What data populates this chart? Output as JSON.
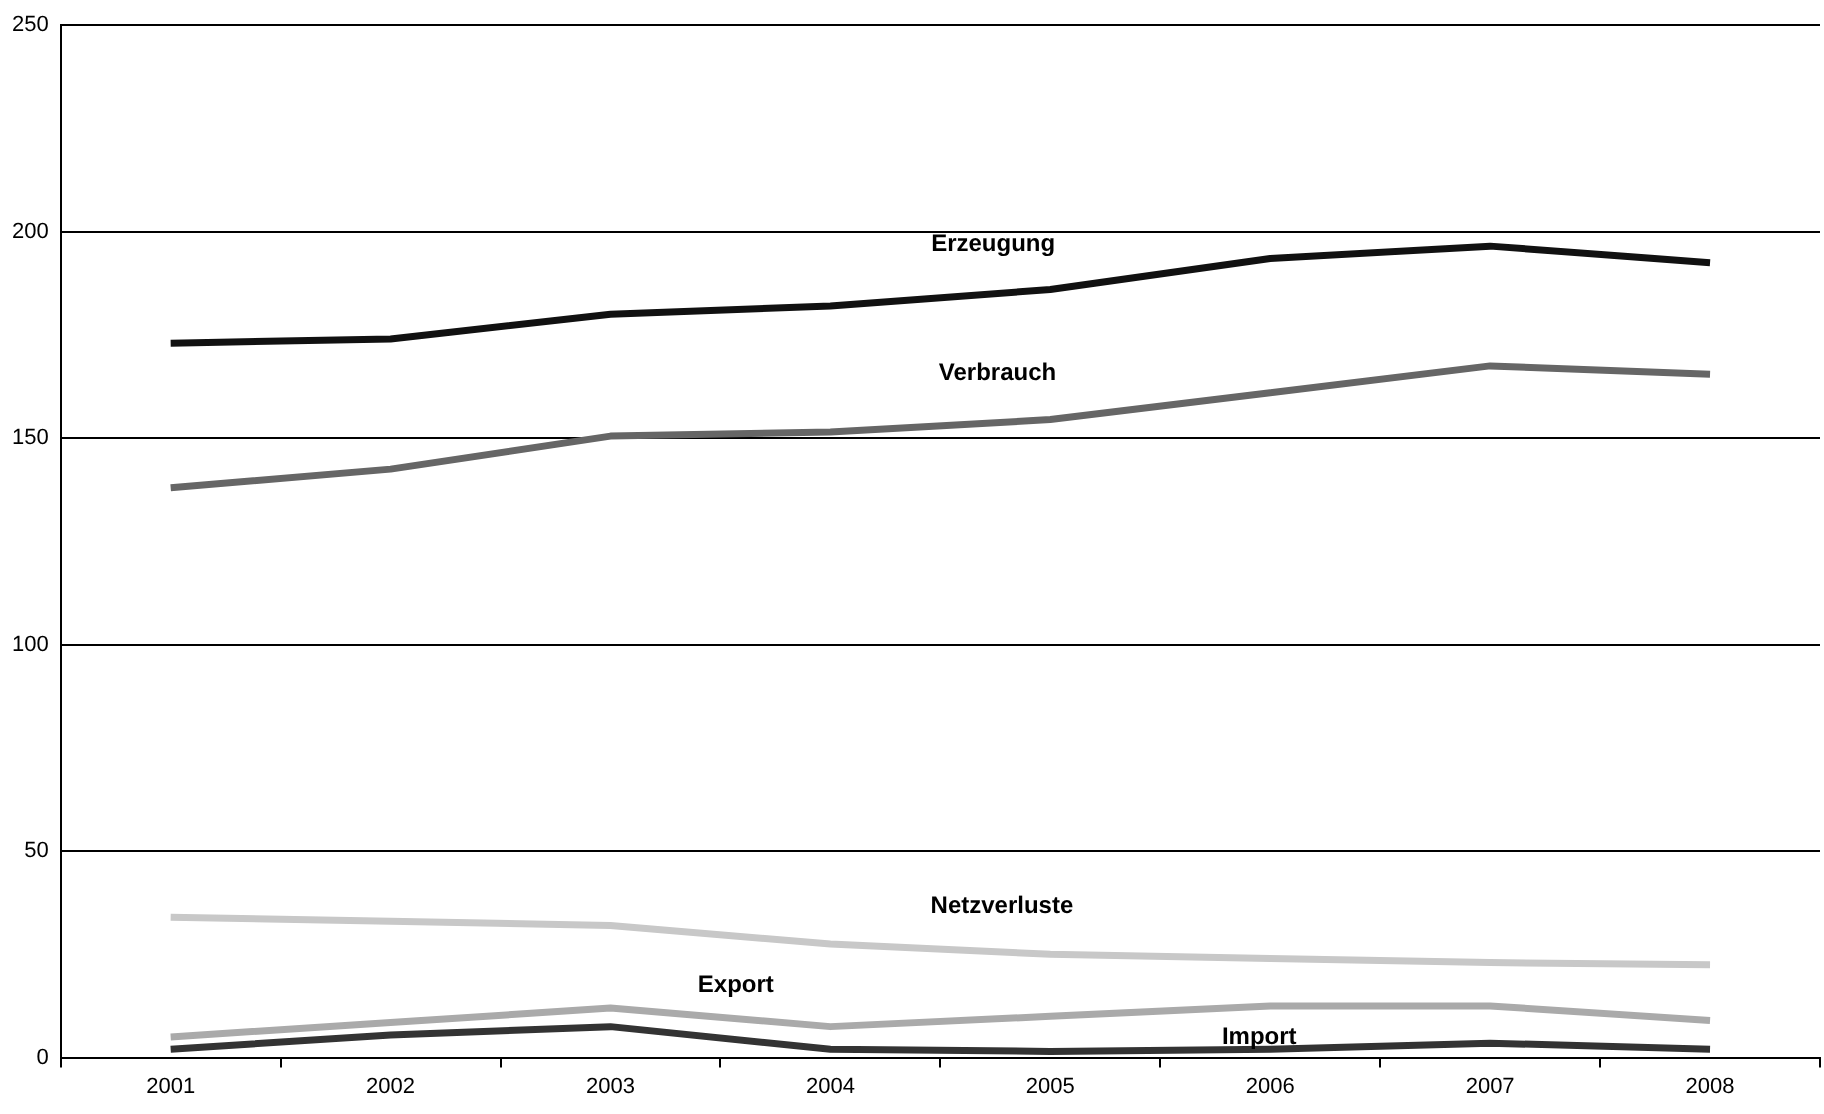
{
  "chart_data": {
    "type": "line",
    "categories": [
      "2001",
      "2002",
      "2003",
      "2004",
      "2005",
      "2006",
      "2007",
      "2008"
    ],
    "series": [
      {
        "name": "Erzeugung",
        "color": "#111111",
        "values": [
          173,
          174,
          180,
          182,
          186,
          193.5,
          196.5,
          192.5
        ]
      },
      {
        "name": "Verbrauch",
        "color": "#666666",
        "values": [
          138,
          142.5,
          150.5,
          151.5,
          154.5,
          161,
          167.5,
          165.5
        ]
      },
      {
        "name": "Netzverluste",
        "color": "#c8c8c8",
        "values": [
          34,
          33,
          32,
          27.5,
          25,
          24,
          23,
          22.5
        ]
      },
      {
        "name": "Export",
        "color": "#aaaaaa",
        "values": [
          5,
          8.5,
          12,
          7.5,
          10,
          12.5,
          12.5,
          9
        ]
      },
      {
        "name": "Import",
        "color": "#333333",
        "values": [
          2,
          5.5,
          7.5,
          2,
          1.5,
          2,
          3.5,
          2
        ]
      }
    ],
    "ylim": [
      0,
      250
    ],
    "yticks": [
      0,
      50,
      100,
      150,
      200,
      250
    ],
    "grid": "y",
    "legend": false,
    "marker": "none",
    "line_style": "solid"
  }
}
